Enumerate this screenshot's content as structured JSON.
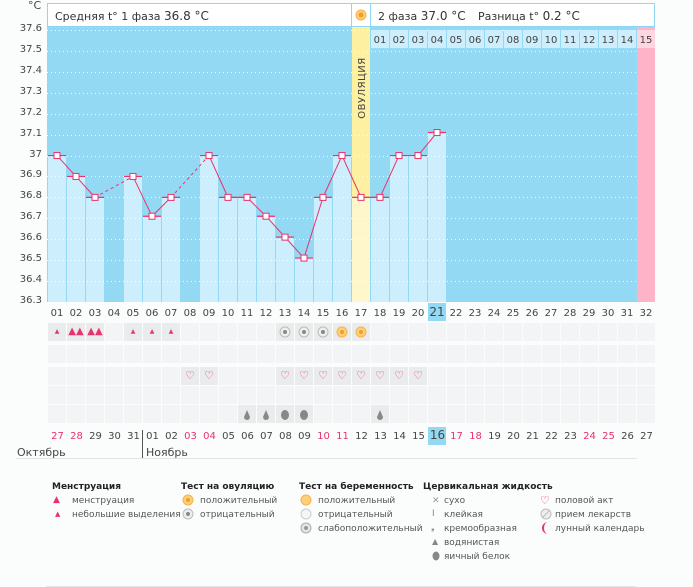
{
  "header": {
    "phase1_label": "Средняя t° 1 фаза",
    "phase1_value": "36.8 °C",
    "phase2_label": "2 фаза",
    "phase2_value": "37.0 °C",
    "diff_label": "Разница t°",
    "diff_value": "0.2 °C",
    "ovulation_label": "ОВУЛЯЦИЯ"
  },
  "unit": "°C",
  "colors": {
    "sky": "#94d9f3",
    "bar": "#cdeefc",
    "line": "#e8336d",
    "ovulation": "#fdf0a0",
    "pink_col": "#ffb3c9",
    "today": "#94d9f3"
  },
  "chart_data": {
    "type": "bar",
    "title": "",
    "ylabel": "°C",
    "ylim": [
      36.3,
      37.6
    ],
    "yticks": [
      "37.6",
      "37.5",
      "37.4",
      "37.3",
      "37.2",
      "37.1",
      "37",
      "36.9",
      "36.8",
      "36.7",
      "36.6",
      "36.5",
      "36.4",
      "36.3"
    ],
    "cycle_days": [
      "01",
      "02",
      "03",
      "04",
      "05",
      "06",
      "07",
      "08",
      "09",
      "10",
      "11",
      "12",
      "13",
      "14",
      "15",
      "16",
      "17",
      "18",
      "19",
      "20",
      "21",
      "22",
      "23",
      "24",
      "25",
      "26",
      "27",
      "28",
      "29",
      "30",
      "31",
      "32"
    ],
    "values": [
      37.0,
      36.9,
      36.8,
      null,
      36.9,
      36.71,
      36.8,
      null,
      37.0,
      36.8,
      36.8,
      36.71,
      36.61,
      36.51,
      36.8,
      37.0,
      36.8,
      36.8,
      37.0,
      37.0,
      37.11,
      null,
      null,
      null,
      null,
      null,
      null,
      null,
      null,
      null,
      null,
      null
    ],
    "ovulation_day_index": 16,
    "today_day_index": 20,
    "luteal_days": [
      "01",
      "02",
      "03",
      "04",
      "05",
      "06",
      "07",
      "08",
      "09",
      "10",
      "11",
      "12",
      "13",
      "14",
      "15"
    ],
    "grid": true
  },
  "rows": {
    "menstruation": [
      "small",
      "big",
      "big",
      null,
      "small",
      "small",
      "small",
      null,
      null,
      null,
      null,
      null,
      null,
      null,
      null,
      null,
      null,
      null,
      null,
      null,
      null,
      null,
      null,
      null,
      null,
      null,
      null,
      null,
      null,
      null,
      null,
      null
    ],
    "ovulation_test": [
      null,
      null,
      null,
      null,
      null,
      null,
      null,
      null,
      null,
      null,
      null,
      null,
      "neg",
      "neg",
      "neg",
      "pos",
      "pos",
      null,
      null,
      null,
      null,
      null,
      null,
      null,
      null,
      null,
      null,
      null,
      null,
      null,
      null,
      null
    ],
    "intercourse": [
      null,
      null,
      null,
      null,
      null,
      null,
      null,
      "heart",
      "heart",
      null,
      null,
      null,
      "heart",
      "heart",
      "heart",
      "heart",
      "heart",
      "heart",
      "heart",
      "heart",
      null,
      null,
      null,
      null,
      null,
      null,
      null,
      null,
      null,
      null,
      null,
      null
    ],
    "cervical": [
      null,
      null,
      null,
      null,
      null,
      null,
      null,
      null,
      null,
      null,
      "water",
      "water",
      "egg",
      "egg",
      null,
      null,
      null,
      "water",
      null,
      null,
      null,
      null,
      null,
      null,
      null,
      null,
      null,
      null,
      null,
      null,
      null,
      null
    ]
  },
  "calendar": {
    "dates": [
      "27",
      "28",
      "29",
      "30",
      "31",
      "01",
      "02",
      "03",
      "04",
      "05",
      "06",
      "07",
      "08",
      "09",
      "10",
      "11",
      "12",
      "13",
      "14",
      "15",
      "16",
      "17",
      "18",
      "19",
      "20",
      "21",
      "22",
      "23",
      "24",
      "25",
      "26",
      "27"
    ],
    "red": [
      true,
      true,
      false,
      false,
      false,
      false,
      false,
      true,
      true,
      false,
      false,
      false,
      false,
      false,
      true,
      true,
      false,
      false,
      false,
      false,
      false,
      true,
      true,
      false,
      false,
      false,
      false,
      false,
      true,
      true,
      false,
      false
    ],
    "today_index": 20,
    "month1": "Октябрь",
    "month2": "Ноябрь"
  },
  "legend": {
    "menstruation": {
      "title": "Менструация",
      "items": [
        "менструация",
        "небольшие выделения"
      ]
    },
    "ovulation_test": {
      "title": "Тест на овуляцию",
      "items": [
        "положительный",
        "отрицательный"
      ]
    },
    "pregnancy_test": {
      "title": "Тест на беременность",
      "items": [
        "положительный",
        "отрицательный",
        "слабоположительный"
      ]
    },
    "cervical": {
      "title": "Цервикальная жидкость",
      "items": [
        "сухо",
        "клейкая",
        "кремообразная",
        "водянистая",
        "яичный белок"
      ]
    },
    "other": {
      "items": [
        "половой акт",
        "прием лекарств",
        "лунный календарь"
      ]
    }
  }
}
